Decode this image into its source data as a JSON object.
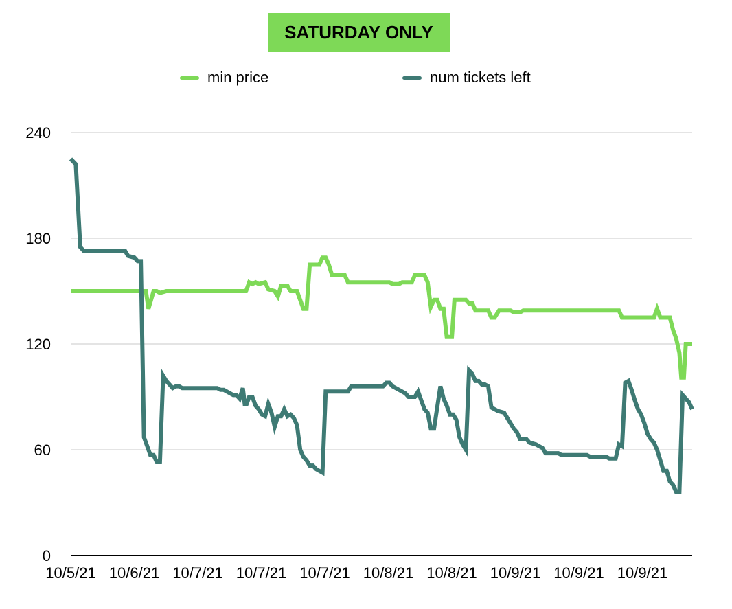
{
  "chart_data": {
    "type": "line",
    "title": "SATURDAY ONLY",
    "title_background": "#7ED957",
    "legend_position": "top",
    "grid": true,
    "ylim": [
      0,
      240
    ],
    "yticks": [
      0,
      60,
      120,
      180,
      240
    ],
    "xtick_labels": [
      "10/5/21",
      "10/6/21",
      "10/7/21",
      "10/7/21",
      "10/7/21",
      "10/8/21",
      "10/8/21",
      "10/9/21",
      "10/9/21",
      "10/9/21"
    ],
    "series": [
      {
        "name": "min price",
        "color": "#7ED957",
        "points": [
          [
            0.0,
            150
          ],
          [
            0.1,
            150
          ],
          [
            0.2,
            150
          ],
          [
            0.3,
            150
          ],
          [
            0.5,
            150
          ],
          [
            0.7,
            150
          ],
          [
            0.9,
            150
          ],
          [
            1.1,
            150
          ],
          [
            1.18,
            150
          ],
          [
            1.22,
            140
          ],
          [
            1.3,
            150
          ],
          [
            1.35,
            150
          ],
          [
            1.4,
            149
          ],
          [
            1.5,
            150
          ],
          [
            1.7,
            150
          ],
          [
            2.0,
            150
          ],
          [
            2.3,
            150
          ],
          [
            2.6,
            150
          ],
          [
            2.75,
            150
          ],
          [
            2.8,
            155
          ],
          [
            2.85,
            154
          ],
          [
            2.9,
            155
          ],
          [
            2.95,
            154
          ],
          [
            3.05,
            155
          ],
          [
            3.1,
            151
          ],
          [
            3.2,
            150
          ],
          [
            3.25,
            147
          ],
          [
            3.3,
            153
          ],
          [
            3.4,
            153
          ],
          [
            3.45,
            150
          ],
          [
            3.55,
            150
          ],
          [
            3.65,
            140
          ],
          [
            3.7,
            140
          ],
          [
            3.75,
            165
          ],
          [
            3.9,
            165
          ],
          [
            3.95,
            169
          ],
          [
            4.0,
            169
          ],
          [
            4.05,
            165
          ],
          [
            4.1,
            159
          ],
          [
            4.3,
            159
          ],
          [
            4.35,
            155
          ],
          [
            4.6,
            155
          ],
          [
            4.9,
            155
          ],
          [
            5.0,
            155
          ],
          [
            5.05,
            154
          ],
          [
            5.15,
            154
          ],
          [
            5.2,
            155
          ],
          [
            5.35,
            155
          ],
          [
            5.4,
            159
          ],
          [
            5.55,
            159
          ],
          [
            5.6,
            155
          ],
          [
            5.65,
            141
          ],
          [
            5.7,
            145
          ],
          [
            5.75,
            145
          ],
          [
            5.8,
            140
          ],
          [
            5.85,
            140
          ],
          [
            5.9,
            124
          ],
          [
            5.98,
            124
          ],
          [
            6.02,
            145
          ],
          [
            6.2,
            145
          ],
          [
            6.25,
            143
          ],
          [
            6.3,
            143
          ],
          [
            6.35,
            139
          ],
          [
            6.55,
            139
          ],
          [
            6.6,
            135
          ],
          [
            6.65,
            135
          ],
          [
            6.72,
            139
          ],
          [
            6.9,
            139
          ],
          [
            6.95,
            138
          ],
          [
            7.05,
            138
          ],
          [
            7.1,
            139
          ],
          [
            7.5,
            139
          ],
          [
            8.0,
            139
          ],
          [
            8.5,
            139
          ],
          [
            8.6,
            139
          ],
          [
            8.65,
            135
          ],
          [
            9.1,
            135
          ],
          [
            9.15,
            135
          ],
          [
            9.2,
            140
          ],
          [
            9.25,
            135
          ],
          [
            9.35,
            135
          ],
          [
            9.4,
            135
          ],
          [
            9.45,
            128
          ],
          [
            9.5,
            123
          ],
          [
            9.55,
            115
          ],
          [
            9.58,
            101
          ],
          [
            9.62,
            101
          ],
          [
            9.65,
            120
          ],
          [
            9.75,
            120
          ]
        ]
      },
      {
        "name": "num tickets left",
        "color": "#3E7A74",
        "points": [
          [
            0.0,
            225
          ],
          [
            0.08,
            222
          ],
          [
            0.15,
            175
          ],
          [
            0.2,
            173
          ],
          [
            0.3,
            173
          ],
          [
            0.5,
            173
          ],
          [
            0.7,
            173
          ],
          [
            0.85,
            173
          ],
          [
            0.9,
            170
          ],
          [
            1.0,
            169
          ],
          [
            1.05,
            167
          ],
          [
            1.1,
            167
          ],
          [
            1.15,
            67
          ],
          [
            1.2,
            62
          ],
          [
            1.25,
            57
          ],
          [
            1.3,
            57
          ],
          [
            1.35,
            53
          ],
          [
            1.4,
            53
          ],
          [
            1.45,
            102
          ],
          [
            1.5,
            99
          ],
          [
            1.55,
            97
          ],
          [
            1.6,
            95
          ],
          [
            1.65,
            96
          ],
          [
            1.7,
            96
          ],
          [
            1.75,
            95
          ],
          [
            2.0,
            95
          ],
          [
            2.25,
            95
          ],
          [
            2.3,
            95
          ],
          [
            2.35,
            94
          ],
          [
            2.4,
            94
          ],
          [
            2.5,
            92
          ],
          [
            2.55,
            91
          ],
          [
            2.6,
            91
          ],
          [
            2.65,
            89
          ],
          [
            2.7,
            95
          ],
          [
            2.73,
            86
          ],
          [
            2.76,
            86
          ],
          [
            2.8,
            90
          ],
          [
            2.85,
            90
          ],
          [
            2.9,
            85
          ],
          [
            2.95,
            83
          ],
          [
            3.0,
            80
          ],
          [
            3.05,
            79
          ],
          [
            3.1,
            86
          ],
          [
            3.15,
            81
          ],
          [
            3.2,
            73
          ],
          [
            3.25,
            79
          ],
          [
            3.3,
            79
          ],
          [
            3.35,
            83
          ],
          [
            3.4,
            79
          ],
          [
            3.45,
            80
          ],
          [
            3.5,
            78
          ],
          [
            3.55,
            74
          ],
          [
            3.6,
            60
          ],
          [
            3.65,
            56
          ],
          [
            3.7,
            54
          ],
          [
            3.75,
            51
          ],
          [
            3.8,
            51
          ],
          [
            3.85,
            49
          ],
          [
            3.9,
            48
          ],
          [
            3.95,
            47
          ],
          [
            4.0,
            93
          ],
          [
            4.1,
            93
          ],
          [
            4.2,
            93
          ],
          [
            4.35,
            93
          ],
          [
            4.4,
            96
          ],
          [
            4.5,
            96
          ],
          [
            4.6,
            96
          ],
          [
            4.8,
            96
          ],
          [
            4.9,
            96
          ],
          [
            4.95,
            98
          ],
          [
            5.0,
            98
          ],
          [
            5.05,
            96
          ],
          [
            5.15,
            94
          ],
          [
            5.25,
            92
          ],
          [
            5.3,
            90
          ],
          [
            5.4,
            90
          ],
          [
            5.45,
            93
          ],
          [
            5.5,
            88
          ],
          [
            5.55,
            83
          ],
          [
            5.6,
            81
          ],
          [
            5.65,
            72
          ],
          [
            5.7,
            72
          ],
          [
            5.75,
            84
          ],
          [
            5.8,
            96
          ],
          [
            5.85,
            89
          ],
          [
            5.9,
            85
          ],
          [
            5.95,
            80
          ],
          [
            6.0,
            80
          ],
          [
            6.05,
            77
          ],
          [
            6.1,
            67
          ],
          [
            6.15,
            63
          ],
          [
            6.2,
            60
          ],
          [
            6.25,
            105
          ],
          [
            6.3,
            103
          ],
          [
            6.35,
            99
          ],
          [
            6.4,
            99
          ],
          [
            6.45,
            97
          ],
          [
            6.5,
            97
          ],
          [
            6.55,
            96
          ],
          [
            6.6,
            84
          ],
          [
            6.7,
            82
          ],
          [
            6.8,
            81
          ],
          [
            6.85,
            78
          ],
          [
            6.9,
            75
          ],
          [
            6.95,
            72
          ],
          [
            7.0,
            70
          ],
          [
            7.05,
            66
          ],
          [
            7.15,
            66
          ],
          [
            7.2,
            64
          ],
          [
            7.3,
            63
          ],
          [
            7.35,
            62
          ],
          [
            7.4,
            61
          ],
          [
            7.45,
            58
          ],
          [
            7.6,
            58
          ],
          [
            7.65,
            58
          ],
          [
            7.7,
            57
          ],
          [
            8.0,
            57
          ],
          [
            8.1,
            57
          ],
          [
            8.15,
            56
          ],
          [
            8.3,
            56
          ],
          [
            8.4,
            56
          ],
          [
            8.45,
            55
          ],
          [
            8.55,
            55
          ],
          [
            8.6,
            63
          ],
          [
            8.65,
            62
          ],
          [
            8.7,
            98
          ],
          [
            8.75,
            99
          ],
          [
            8.8,
            94
          ],
          [
            8.85,
            88
          ],
          [
            8.9,
            83
          ],
          [
            8.95,
            80
          ],
          [
            9.0,
            75
          ],
          [
            9.05,
            69
          ],
          [
            9.1,
            66
          ],
          [
            9.15,
            64
          ],
          [
            9.2,
            60
          ],
          [
            9.25,
            54
          ],
          [
            9.3,
            48
          ],
          [
            9.35,
            48
          ],
          [
            9.4,
            42
          ],
          [
            9.45,
            40
          ],
          [
            9.5,
            36
          ],
          [
            9.55,
            36
          ],
          [
            9.6,
            91
          ],
          [
            9.65,
            89
          ],
          [
            9.7,
            87
          ],
          [
            9.75,
            83
          ]
        ]
      }
    ]
  }
}
